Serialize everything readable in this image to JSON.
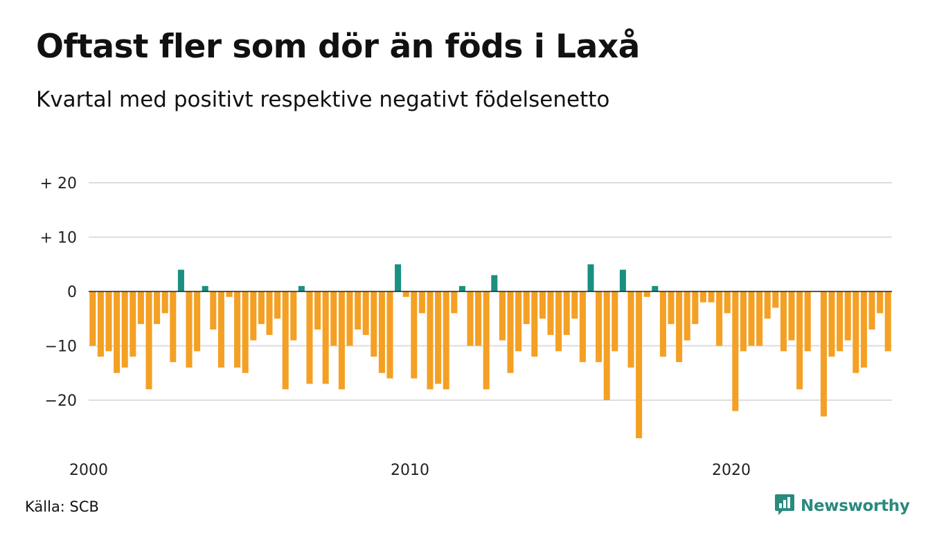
{
  "header": {
    "title": "Oftast fler som dör än föds i Laxå",
    "subtitle": "Kvartal med positivt respektive negativt födelsenetto"
  },
  "footer": {
    "source": "Källa: SCB",
    "brand": "Newsworthy",
    "brand_icon": "bar-chart-speech-icon"
  },
  "colors": {
    "positive": "#1a9081",
    "negative": "#f4a024",
    "grid": "#dddddd",
    "zero_line": "#222222",
    "brand": "#2a8a7e"
  },
  "chart_data": {
    "type": "bar",
    "title": "Oftast fler som dör än föds i Laxå",
    "subtitle": "Kvartal med positivt respektive negativt födelsenetto",
    "xlabel": "",
    "ylabel": "",
    "x_start": "2000 Q1",
    "x_end": "2024 Q4",
    "x_ticks": [
      {
        "year": 2000,
        "label": "2000"
      },
      {
        "year": 2010,
        "label": "2010"
      },
      {
        "year": 2020,
        "label": "2020"
      }
    ],
    "y_ticks": [
      {
        "value": 20,
        "label": "+ 20"
      },
      {
        "value": 10,
        "label": "+ 10"
      },
      {
        "value": 0,
        "label": "0"
      },
      {
        "value": -10,
        "label": "−10"
      },
      {
        "value": -20,
        "label": "−20"
      }
    ],
    "ylim": [
      -28,
      20
    ],
    "grid": true,
    "legend": "none",
    "values": [
      -10,
      -12,
      -11,
      -15,
      -14,
      -12,
      -6,
      -18,
      -6,
      -4,
      -13,
      4,
      -14,
      -11,
      1,
      -7,
      -14,
      -1,
      -14,
      -15,
      -9,
      -6,
      -8,
      -5,
      -18,
      -9,
      1,
      -17,
      -7,
      -17,
      -10,
      -18,
      -10,
      -7,
      -8,
      -12,
      -15,
      -16,
      5,
      -1,
      -16,
      -4,
      -18,
      -17,
      -18,
      -4,
      1,
      -10,
      -10,
      -18,
      3,
      -9,
      -15,
      -11,
      -6,
      -12,
      -5,
      -8,
      -11,
      -8,
      -5,
      -13,
      5,
      -13,
      -20,
      -11,
      4,
      -14,
      -27,
      -1,
      1,
      -12,
      -6,
      -13,
      -9,
      -6,
      -2,
      -2,
      -10,
      -4,
      -22,
      -11,
      -10,
      -10,
      -5,
      -3,
      -11,
      -9,
      -18,
      -11,
      0,
      -23,
      -12,
      -11,
      -9,
      -15,
      -14,
      -7,
      -4,
      -11
    ]
  }
}
